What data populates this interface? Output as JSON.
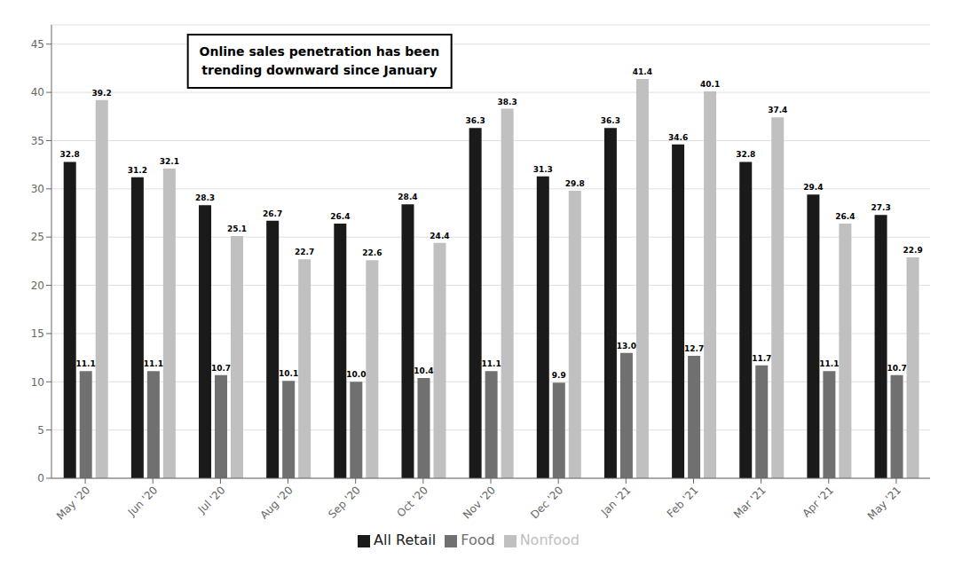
{
  "chart_data": {
    "type": "bar",
    "categories": [
      "May '20",
      "Jun '20",
      "Jul '20",
      "Aug '20",
      "Sep '20",
      "Oct '20",
      "Nov '20",
      "Dec '20",
      "Jan '21",
      "Feb '21",
      "Mar '21",
      "Apr '21",
      "May '21"
    ],
    "series": [
      {
        "name": "All Retail",
        "color": "#1a1a1a",
        "values": [
          32.8,
          31.2,
          28.3,
          26.7,
          26.4,
          28.4,
          36.3,
          31.3,
          36.3,
          34.6,
          32.8,
          29.4,
          27.3
        ]
      },
      {
        "name": "Food",
        "color": "#707070",
        "values": [
          11.1,
          11.1,
          10.7,
          10.1,
          10.0,
          10.4,
          11.1,
          9.9,
          13.0,
          12.7,
          11.7,
          11.1,
          10.7
        ],
        "value_labels": [
          "11.1",
          "11.1",
          "10.7",
          "10.1",
          "10.0",
          "10.4",
          "11.1",
          "9.9",
          "13.0",
          "12.7",
          "11.7",
          "11.1",
          "10.7"
        ]
      },
      {
        "name": "Nonfood",
        "color": "#c0c0c0",
        "values": [
          39.2,
          32.1,
          25.1,
          22.7,
          22.6,
          24.4,
          38.3,
          29.8,
          41.4,
          40.1,
          37.4,
          26.4,
          22.9
        ]
      }
    ],
    "ylim": [
      0,
      47
    ],
    "yticks": [
      0,
      5,
      10,
      15,
      20,
      25,
      30,
      35,
      40,
      45
    ],
    "grid": true,
    "legend": "bottom",
    "data_labels": true,
    "annotations": [
      "Online sales penetration has been\ntrending downward since January"
    ]
  }
}
